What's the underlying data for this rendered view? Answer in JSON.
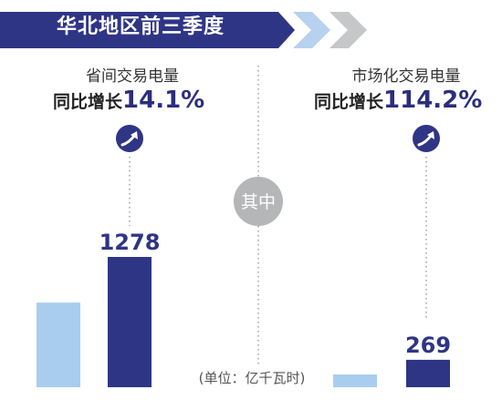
{
  "banner": {
    "title": "华北地区前三季度"
  },
  "sections": {
    "left": {
      "label": "省间交易电量",
      "growth_prefix": "同比增长",
      "growth_value": "14.1%"
    },
    "right": {
      "label": "市场化交易电量",
      "growth_prefix": "同比增长",
      "growth_value": "114.2%"
    },
    "center_label": "其中"
  },
  "unit_note": "(单位：亿千瓦时)",
  "colors": {
    "navy": "#2f3585",
    "light_blue": "#a9cdee",
    "gray_chevron": "#c5c7c9",
    "arrow_light": "#b7d2ef",
    "circle_gray": "#b5b6b8"
  },
  "icons": [
    "growth-arrow-icon",
    "chevron-right-icon"
  ],
  "chart_data": {
    "type": "bar",
    "groups": [
      {
        "label": "省间交易电量",
        "bars": [
          {
            "value": 830,
            "label": "",
            "color": "#a9cdee"
          },
          {
            "value": 1278,
            "label": "1278",
            "color": "#2f3585"
          }
        ]
      },
      {
        "label": "市场化交易电量",
        "bars": [
          {
            "value": 125,
            "label": "",
            "color": "#a9cdee"
          },
          {
            "value": 269,
            "label": "269",
            "color": "#2f3585"
          }
        ]
      }
    ],
    "xlabel": "",
    "ylabel": "",
    "unit": "亿千瓦时",
    "legend": "none",
    "grid": false
  }
}
